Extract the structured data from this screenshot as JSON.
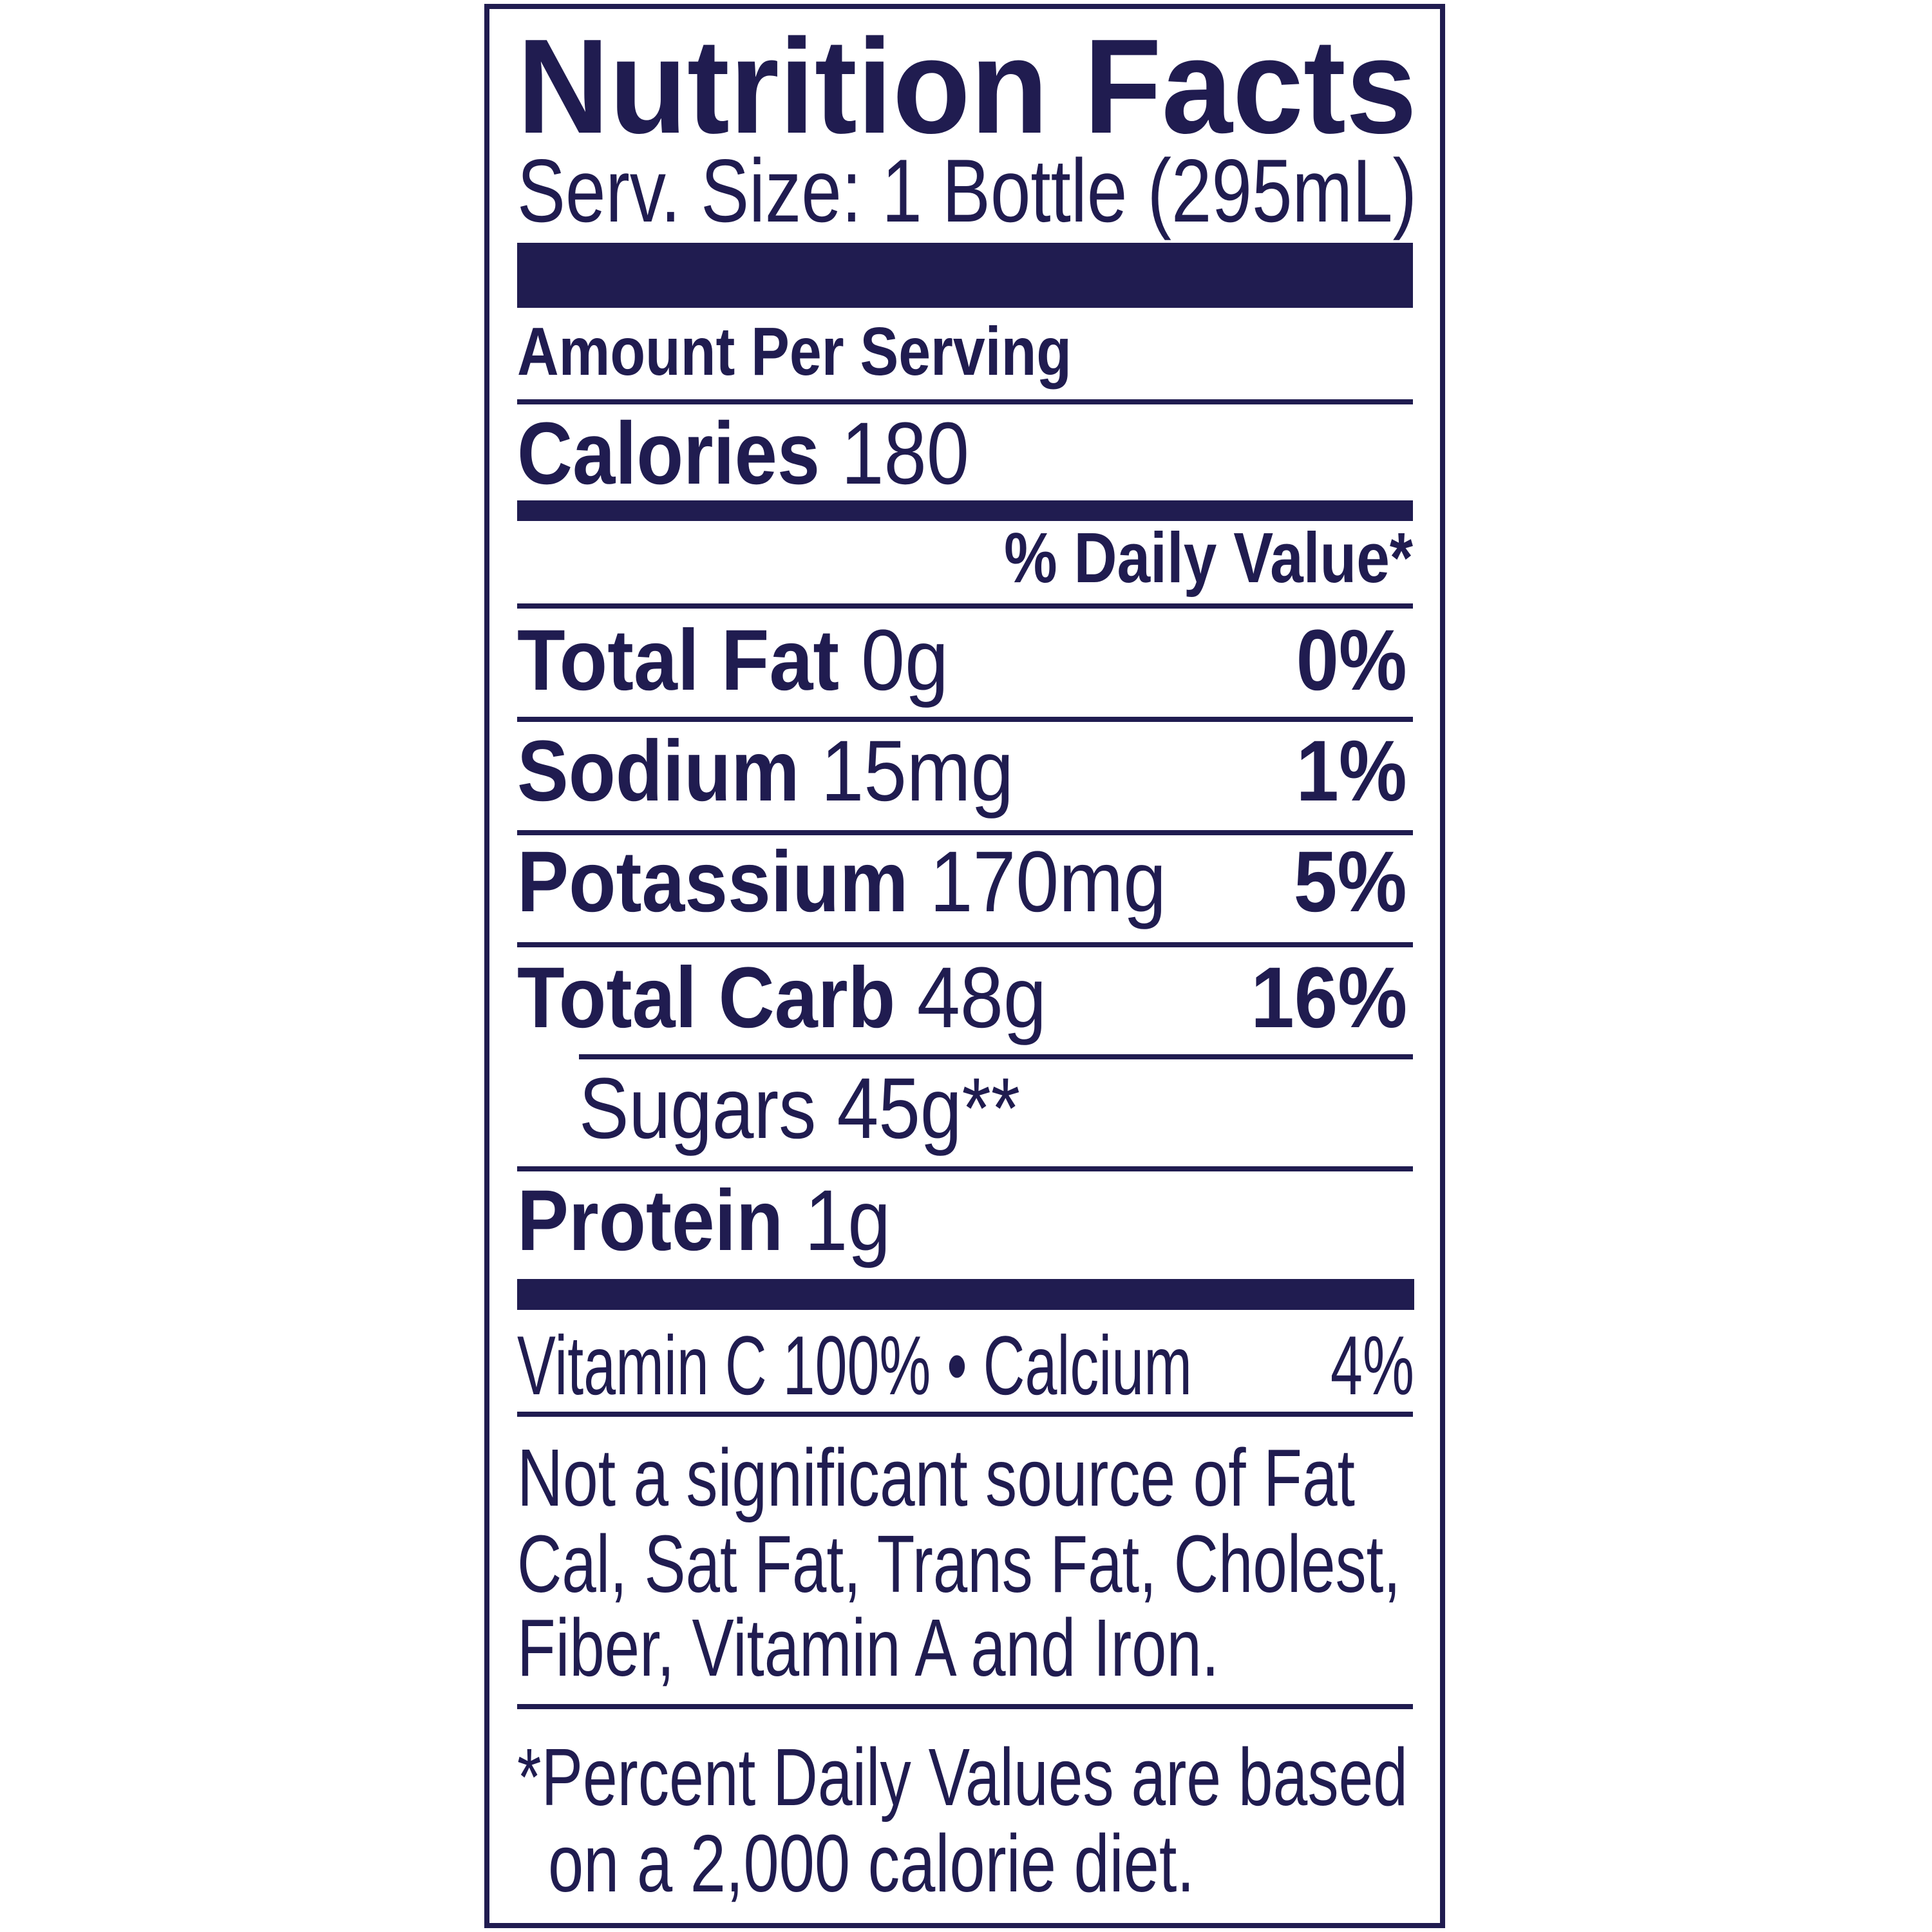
{
  "label": {
    "title": "Nutrition Facts",
    "serving_size": "Serv. Size: 1 Bottle (295mL)",
    "amount_per_serving": "Amount Per Serving",
    "calories": {
      "label": "Calories",
      "value": "180"
    },
    "daily_value_header": "% Daily Value*",
    "nutrients": [
      {
        "label": "Total Fat",
        "amount": "0g",
        "dv": "0%"
      },
      {
        "label": "Sodium",
        "amount": "15mg",
        "dv": "1%"
      },
      {
        "label": "Potassium",
        "amount": "170mg",
        "dv": "5%"
      },
      {
        "label": "Total Carb",
        "amount": "48g",
        "dv": "16%"
      },
      {
        "label": "Sugars",
        "amount": "45g**",
        "dv": ""
      },
      {
        "label": "Protein",
        "amount": "1g",
        "dv": ""
      }
    ],
    "vitamins": {
      "text": "Vitamin C 100% • Calcium",
      "calcium_dv": "4%"
    },
    "not_significant": [
      "Not a significant source of Fat",
      "Cal, Sat Fat, Trans Fat, Cholest,",
      "Fiber, Vitamin A and Iron."
    ],
    "footnote": [
      "*Percent Daily Values are based",
      "on a 2,000 calorie diet."
    ]
  },
  "colors": {
    "ink": "#201c50",
    "background": "#ffffff"
  }
}
